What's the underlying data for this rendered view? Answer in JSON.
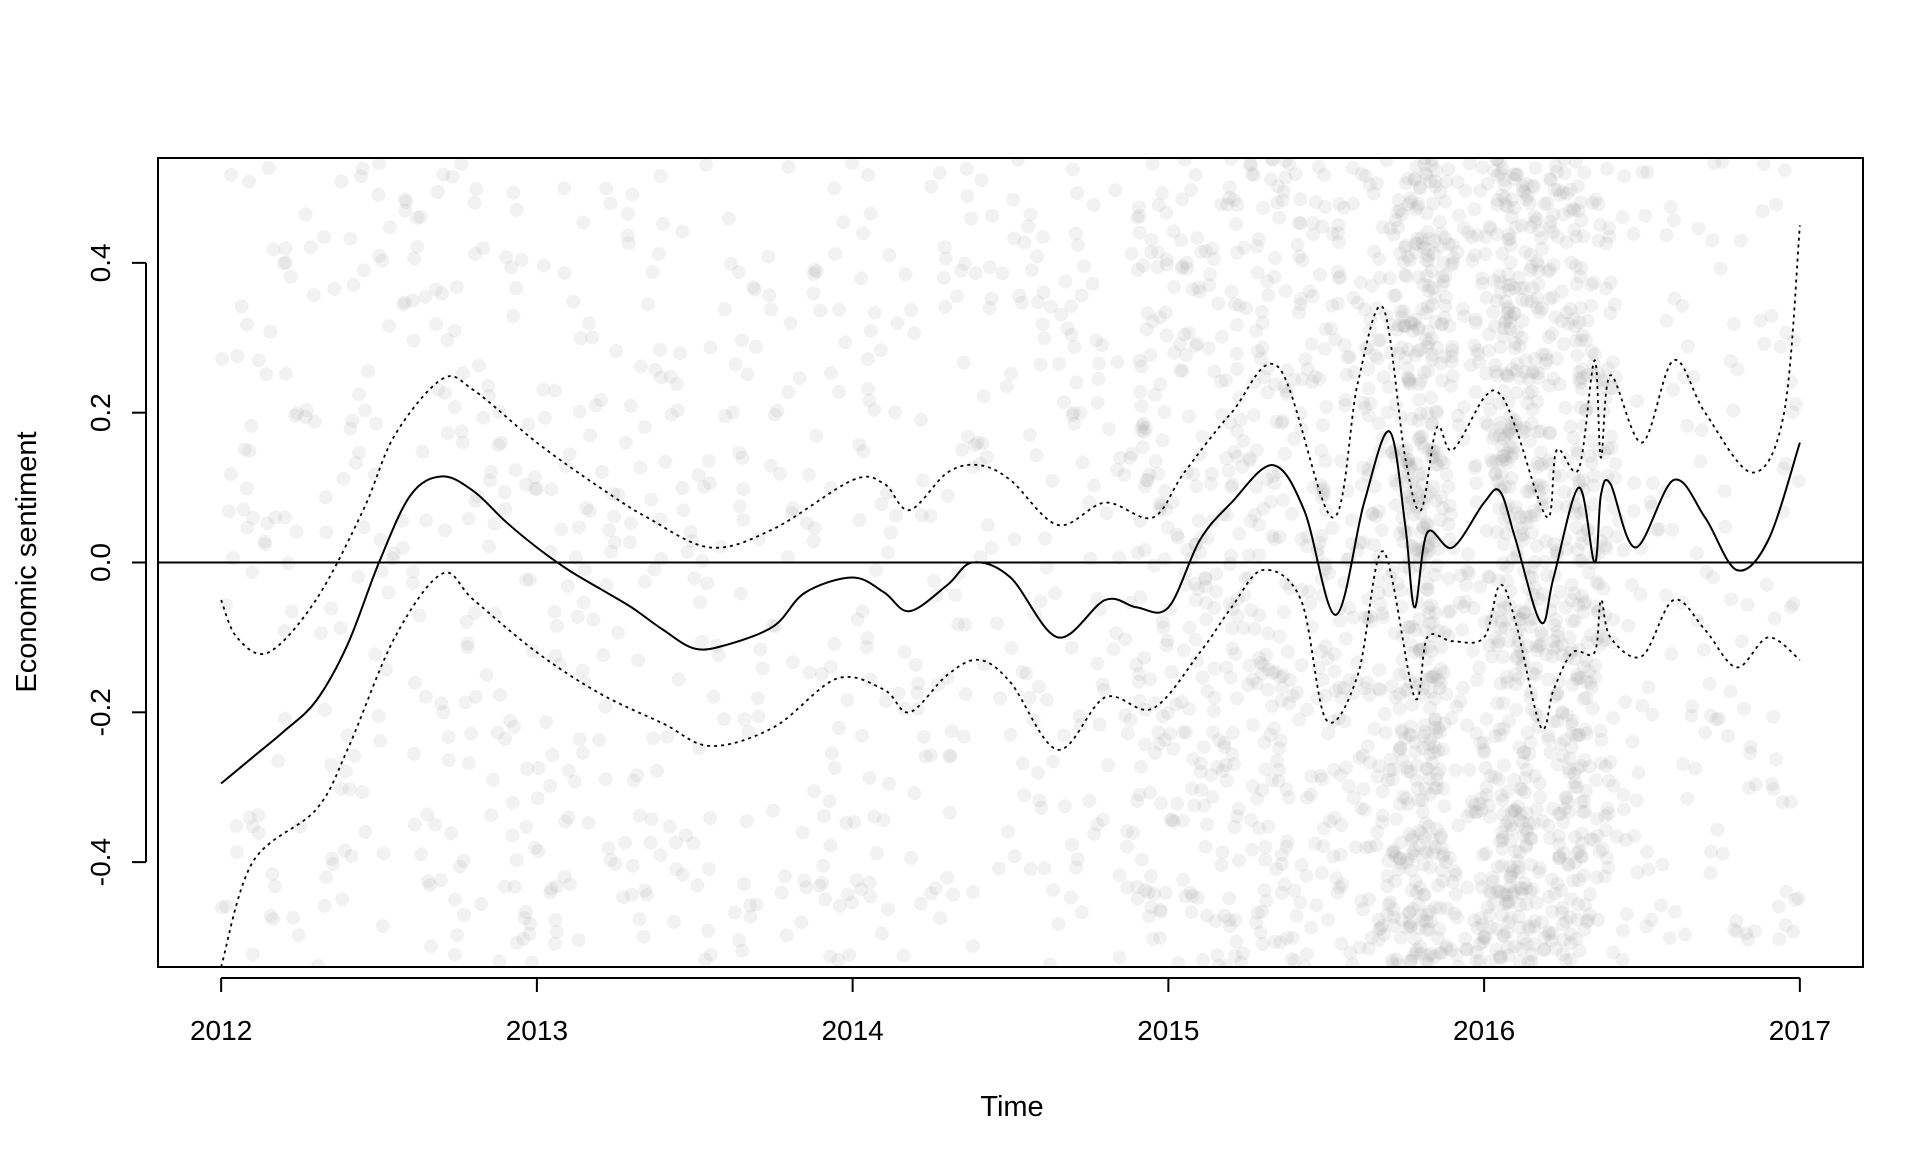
{
  "chart_data": {
    "type": "line",
    "title": "",
    "xlabel": "Time",
    "ylabel": "Economic sentiment",
    "xlim": [
      2011.8,
      2017.2
    ],
    "ylim": [
      -0.54,
      0.54
    ],
    "x_ticks": [
      2012,
      2013,
      2014,
      2015,
      2016,
      2017
    ],
    "x_tick_labels": [
      "2012",
      "2013",
      "2014",
      "2015",
      "2016",
      "2017"
    ],
    "y_ticks": [
      -0.4,
      -0.2,
      0.0,
      0.2,
      0.4
    ],
    "y_tick_labels": [
      "-0.4",
      "-0.2",
      "0.0",
      "0.2",
      "0.4"
    ],
    "reference_line": 0.0,
    "grid": false,
    "legend": "none",
    "colors": {
      "line": "#000000",
      "points": "#9e9e9e",
      "axis": "#000000"
    },
    "series": [
      {
        "style": "solid",
        "x": [
          2012.0,
          2012.1,
          2012.2,
          2012.3,
          2012.4,
          2012.5,
          2012.6,
          2012.7,
          2012.8,
          2012.9,
          2013.0,
          2013.1,
          2013.2,
          2013.3,
          2013.4,
          2013.5,
          2013.6,
          2013.75,
          2013.85,
          2014.0,
          2014.1,
          2014.18,
          2014.3,
          2014.38,
          2014.5,
          2014.65,
          2014.8,
          2014.9,
          2015.0,
          2015.1,
          2015.2,
          2015.33,
          2015.43,
          2015.53,
          2015.62,
          2015.7,
          2015.75,
          2015.78,
          2015.82,
          2015.9,
          2016.0,
          2016.05,
          2016.1,
          2016.18,
          2016.22,
          2016.3,
          2016.35,
          2016.37,
          2016.4,
          2016.48,
          2016.6,
          2016.7,
          2016.8,
          2016.9,
          2017.0
        ],
        "y": [
          -0.295,
          -0.26,
          -0.225,
          -0.185,
          -0.11,
          0.0,
          0.09,
          0.115,
          0.095,
          0.055,
          0.02,
          -0.01,
          -0.035,
          -0.06,
          -0.09,
          -0.115,
          -0.11,
          -0.085,
          -0.04,
          -0.02,
          -0.04,
          -0.065,
          -0.03,
          0.0,
          -0.02,
          -0.1,
          -0.05,
          -0.06,
          -0.06,
          0.03,
          0.08,
          0.13,
          0.07,
          -0.07,
          0.08,
          0.175,
          0.05,
          -0.06,
          0.04,
          0.02,
          0.08,
          0.095,
          0.03,
          -0.08,
          -0.02,
          0.1,
          0.0,
          0.09,
          0.105,
          0.02,
          0.11,
          0.06,
          -0.01,
          0.03,
          0.16
        ]
      },
      {
        "style": "dotted",
        "x": [
          2012.0,
          2012.05,
          2012.15,
          2012.3,
          2012.45,
          2012.55,
          2012.7,
          2012.8,
          2013.0,
          2013.2,
          2013.35,
          2013.55,
          2013.75,
          2014.0,
          2014.1,
          2014.18,
          2014.3,
          2014.4,
          2014.5,
          2014.65,
          2014.8,
          2014.95,
          2015.05,
          2015.2,
          2015.35,
          2015.52,
          2015.6,
          2015.68,
          2015.75,
          2015.8,
          2015.85,
          2015.9,
          2016.0,
          2016.05,
          2016.1,
          2016.2,
          2016.23,
          2016.3,
          2016.35,
          2016.37,
          2016.4,
          2016.5,
          2016.6,
          2016.7,
          2016.85,
          2016.95,
          2017.0
        ],
        "y": [
          -0.05,
          -0.1,
          -0.12,
          -0.05,
          0.07,
          0.17,
          0.245,
          0.23,
          0.16,
          0.1,
          0.06,
          0.02,
          0.045,
          0.11,
          0.105,
          0.07,
          0.12,
          0.13,
          0.11,
          0.05,
          0.08,
          0.06,
          0.12,
          0.2,
          0.26,
          0.06,
          0.24,
          0.34,
          0.14,
          0.07,
          0.18,
          0.15,
          0.22,
          0.225,
          0.18,
          0.06,
          0.15,
          0.125,
          0.27,
          0.14,
          0.25,
          0.16,
          0.27,
          0.2,
          0.12,
          0.2,
          0.45
        ]
      },
      {
        "style": "dotted",
        "x": [
          2012.0,
          2012.1,
          2012.3,
          2012.4,
          2012.55,
          2012.7,
          2012.8,
          2013.0,
          2013.2,
          2013.4,
          2013.55,
          2013.75,
          2013.95,
          2014.1,
          2014.18,
          2014.3,
          2014.4,
          2014.5,
          2014.65,
          2014.8,
          2014.95,
          2015.1,
          2015.2,
          2015.3,
          2015.42,
          2015.5,
          2015.6,
          2015.68,
          2015.78,
          2015.82,
          2015.9,
          2016.0,
          2016.05,
          2016.1,
          2016.18,
          2016.22,
          2016.28,
          2016.35,
          2016.37,
          2016.4,
          2016.5,
          2016.6,
          2016.7,
          2016.8,
          2016.9,
          2017.0
        ],
        "y": [
          -0.54,
          -0.4,
          -0.33,
          -0.25,
          -0.1,
          -0.015,
          -0.05,
          -0.12,
          -0.175,
          -0.215,
          -0.245,
          -0.22,
          -0.155,
          -0.17,
          -0.2,
          -0.15,
          -0.13,
          -0.16,
          -0.25,
          -0.18,
          -0.195,
          -0.12,
          -0.06,
          -0.01,
          -0.05,
          -0.21,
          -0.15,
          0.015,
          -0.18,
          -0.1,
          -0.105,
          -0.1,
          -0.03,
          -0.08,
          -0.22,
          -0.17,
          -0.12,
          -0.12,
          -0.05,
          -0.1,
          -0.125,
          -0.05,
          -0.09,
          -0.14,
          -0.1,
          -0.13
        ]
      }
    ],
    "scatter": {
      "count": 3000,
      "x_range": [
        2012.0,
        2017.0
      ],
      "y_range": [
        -0.54,
        0.54
      ],
      "density_peaks": [
        2015.8,
        2016.1,
        2016.3
      ]
    }
  }
}
